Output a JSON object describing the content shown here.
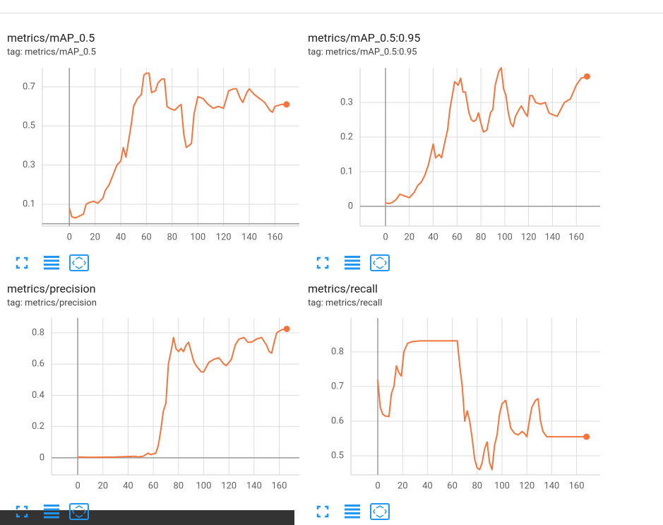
{
  "chart_data": [
    {
      "type": "line",
      "title": "metrics/mAP_0.5",
      "tag": "tag: metrics/mAP_0.5",
      "x": [
        0,
        2,
        5,
        8,
        11,
        13,
        16,
        19,
        22,
        26,
        28,
        31,
        34,
        37,
        40,
        42,
        44,
        46,
        48,
        50,
        53,
        56,
        58,
        60,
        62,
        64,
        67,
        69,
        72,
        74,
        76,
        78,
        82,
        85,
        87,
        89,
        91,
        93,
        95,
        97,
        100,
        104,
        108,
        112,
        116,
        120,
        124,
        128,
        130,
        133,
        135,
        138,
        140,
        144,
        148,
        152,
        154,
        156,
        158,
        160,
        165,
        169
      ],
      "series": [
        {
          "name": "metrics/mAP_0.5",
          "color": "#f4743c",
          "values": [
            0.08,
            0.035,
            0.03,
            0.04,
            0.05,
            0.1,
            0.11,
            0.115,
            0.105,
            0.13,
            0.17,
            0.2,
            0.25,
            0.3,
            0.32,
            0.39,
            0.34,
            0.42,
            0.5,
            0.6,
            0.64,
            0.66,
            0.76,
            0.77,
            0.77,
            0.67,
            0.68,
            0.72,
            0.74,
            0.74,
            0.6,
            0.59,
            0.58,
            0.6,
            0.61,
            0.46,
            0.39,
            0.4,
            0.41,
            0.56,
            0.65,
            0.64,
            0.61,
            0.59,
            0.6,
            0.59,
            0.68,
            0.69,
            0.69,
            0.64,
            0.62,
            0.67,
            0.69,
            0.66,
            0.64,
            0.62,
            0.6,
            0.58,
            0.57,
            0.6,
            0.61,
            0.61
          ]
        }
      ],
      "xlim": [
        -21,
        179
      ],
      "xticks": [
        0,
        20,
        40,
        60,
        80,
        100,
        120,
        140,
        160
      ],
      "ylim": [
        -0.012,
        0.797
      ],
      "yticks": [
        0.1,
        0.3,
        0.5,
        0.7
      ],
      "grid": true
    },
    {
      "type": "line",
      "title": "metrics/mAP_0.5:0.95",
      "tag": "tag: metrics/mAP_0.5:0.95",
      "x": [
        0,
        3,
        6,
        9,
        12,
        16,
        20,
        24,
        27,
        30,
        33,
        36,
        38,
        40,
        42,
        45,
        47,
        50,
        52,
        54,
        56,
        58,
        61,
        63,
        65,
        67,
        70,
        72,
        74,
        76,
        78,
        80,
        82,
        85,
        88,
        90,
        92,
        95,
        97,
        99,
        101,
        103,
        105,
        107,
        109,
        112,
        114,
        117,
        119,
        121,
        123,
        126,
        130,
        134,
        137,
        140,
        144,
        150,
        155,
        160,
        164,
        169
      ],
      "series": [
        {
          "name": "metrics/mAP_0.5:0.95",
          "color": "#f4743c",
          "values": [
            0.01,
            0.008,
            0.012,
            0.02,
            0.035,
            0.03,
            0.025,
            0.04,
            0.06,
            0.07,
            0.09,
            0.12,
            0.15,
            0.18,
            0.14,
            0.15,
            0.14,
            0.19,
            0.22,
            0.28,
            0.32,
            0.36,
            0.35,
            0.37,
            0.33,
            0.33,
            0.27,
            0.25,
            0.245,
            0.25,
            0.27,
            0.24,
            0.215,
            0.22,
            0.27,
            0.28,
            0.35,
            0.39,
            0.4,
            0.34,
            0.32,
            0.27,
            0.24,
            0.23,
            0.26,
            0.28,
            0.29,
            0.27,
            0.26,
            0.32,
            0.32,
            0.3,
            0.295,
            0.3,
            0.27,
            0.265,
            0.26,
            0.3,
            0.31,
            0.35,
            0.37,
            0.375
          ]
        }
      ],
      "xlim": [
        -21.3,
        180
      ],
      "xticks": [
        0,
        20,
        40,
        60,
        80,
        100,
        120,
        140,
        160
      ],
      "ylim": [
        -0.057,
        0.4
      ],
      "yticks": [
        0,
        0.1,
        0.2,
        0.3
      ],
      "grid": true
    },
    {
      "type": "line",
      "title": "metrics/precision",
      "tag": "tag: metrics/precision",
      "x": [
        0,
        10,
        20,
        30,
        40,
        45,
        48,
        52,
        56,
        58,
        62,
        64,
        66,
        68,
        70,
        72,
        75,
        76,
        78,
        80,
        82,
        84,
        86,
        88,
        90,
        92,
        94,
        96,
        98,
        100,
        102,
        104,
        108,
        112,
        114,
        116,
        118,
        120,
        122,
        125,
        128,
        132,
        135,
        138,
        142,
        146,
        150,
        152,
        154,
        156,
        158,
        162,
        166
      ],
      "series": [
        {
          "name": "metrics/precision",
          "color": "#f4743c",
          "values": [
            0.005,
            0.003,
            0.004,
            0.005,
            0.008,
            0.01,
            0.005,
            0.01,
            0.03,
            0.02,
            0.03,
            0.08,
            0.18,
            0.3,
            0.35,
            0.6,
            0.72,
            0.77,
            0.7,
            0.68,
            0.7,
            0.68,
            0.72,
            0.74,
            0.68,
            0.62,
            0.59,
            0.57,
            0.55,
            0.55,
            0.58,
            0.61,
            0.63,
            0.64,
            0.62,
            0.6,
            0.59,
            0.61,
            0.63,
            0.72,
            0.76,
            0.77,
            0.74,
            0.74,
            0.76,
            0.77,
            0.72,
            0.68,
            0.67,
            0.74,
            0.8,
            0.82,
            0.825
          ]
        }
      ],
      "xlim": [
        -20.8,
        176
      ],
      "xticks": [
        0,
        20,
        40,
        60,
        80,
        100,
        120,
        140,
        160
      ],
      "ylim": [
        -0.109,
        0.895
      ],
      "yticks": [
        0,
        0.2,
        0.4,
        0.6,
        0.8
      ],
      "grid": true
    },
    {
      "type": "line",
      "title": "metrics/recall",
      "tag": "tag: metrics/recall",
      "x": [
        0,
        2,
        4,
        6,
        9,
        11,
        13,
        15,
        17,
        19,
        21,
        24,
        28,
        35,
        50,
        64,
        66,
        68,
        70,
        72,
        74,
        76,
        78,
        80,
        82,
        84,
        86,
        88,
        90,
        92,
        94,
        96,
        98,
        100,
        103,
        105,
        107,
        110,
        113,
        116,
        118,
        120,
        122,
        124,
        127,
        129,
        131,
        133,
        136,
        140,
        150,
        160,
        168
      ],
      "series": [
        {
          "name": "metrics/recall",
          "color": "#f4743c",
          "values": [
            0.72,
            0.64,
            0.62,
            0.615,
            0.613,
            0.68,
            0.7,
            0.76,
            0.74,
            0.73,
            0.8,
            0.825,
            0.83,
            0.832,
            0.832,
            0.832,
            0.76,
            0.7,
            0.6,
            0.63,
            0.6,
            0.55,
            0.49,
            0.465,
            0.46,
            0.48,
            0.52,
            0.54,
            0.48,
            0.46,
            0.53,
            0.56,
            0.62,
            0.65,
            0.66,
            0.62,
            0.58,
            0.565,
            0.56,
            0.57,
            0.565,
            0.555,
            0.6,
            0.64,
            0.66,
            0.665,
            0.6,
            0.57,
            0.555,
            0.555,
            0.555,
            0.555,
            0.555
          ]
        }
      ],
      "xlim": [
        -21.6,
        179
      ],
      "xticks": [
        0,
        20,
        40,
        60,
        80,
        100,
        120,
        140,
        160
      ],
      "ylim": [
        0.445,
        0.898
      ],
      "yticks": [
        0.5,
        0.6,
        0.7,
        0.8
      ],
      "grid": true
    }
  ]
}
